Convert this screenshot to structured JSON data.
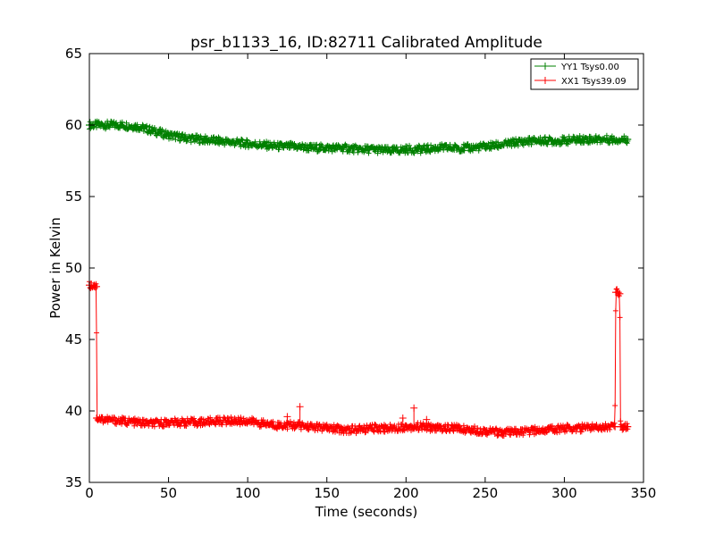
{
  "chart_data": {
    "type": "line",
    "title": "psr_b1133_16, ID:82711 Calibrated Amplitude",
    "xlabel": "Time (seconds)",
    "ylabel": "Power in Kelvin",
    "xlim": [
      0,
      350
    ],
    "ylim": [
      35,
      65
    ],
    "xticks": [
      0,
      50,
      100,
      150,
      200,
      250,
      300,
      350
    ],
    "yticks": [
      35,
      40,
      45,
      50,
      55,
      60,
      65
    ],
    "grid": false,
    "legend_position": "top-right",
    "series": [
      {
        "name": "YY1 Tsys0.00",
        "color": "#008000",
        "marker": "+",
        "points": [
          [
            0,
            60.0
          ],
          [
            10,
            60.0
          ],
          [
            20,
            60.0
          ],
          [
            30,
            59.9
          ],
          [
            40,
            59.6
          ],
          [
            50,
            59.3
          ],
          [
            60,
            59.1
          ],
          [
            70,
            59.0
          ],
          [
            80,
            58.9
          ],
          [
            90,
            58.8
          ],
          [
            100,
            58.7
          ],
          [
            110,
            58.6
          ],
          [
            120,
            58.5
          ],
          [
            130,
            58.5
          ],
          [
            140,
            58.4
          ],
          [
            150,
            58.4
          ],
          [
            160,
            58.4
          ],
          [
            170,
            58.3
          ],
          [
            180,
            58.3
          ],
          [
            190,
            58.2
          ],
          [
            200,
            58.3
          ],
          [
            210,
            58.3
          ],
          [
            220,
            58.4
          ],
          [
            230,
            58.4
          ],
          [
            240,
            58.4
          ],
          [
            250,
            58.5
          ],
          [
            260,
            58.6
          ],
          [
            270,
            58.8
          ],
          [
            280,
            58.9
          ],
          [
            290,
            58.9
          ],
          [
            300,
            58.9
          ],
          [
            310,
            59.0
          ],
          [
            320,
            59.0
          ],
          [
            330,
            59.0
          ],
          [
            340,
            59.0
          ]
        ]
      },
      {
        "name": "XX1 Tsys39.09",
        "color": "#ff0000",
        "marker": "+",
        "points": [
          [
            0,
            48.8
          ],
          [
            3,
            48.8
          ],
          [
            4.5,
            48.7
          ],
          [
            4.6,
            39.5
          ],
          [
            10,
            39.4
          ],
          [
            20,
            39.3
          ],
          [
            30,
            39.2
          ],
          [
            40,
            39.1
          ],
          [
            50,
            39.2
          ],
          [
            60,
            39.2
          ],
          [
            70,
            39.2
          ],
          [
            80,
            39.3
          ],
          [
            90,
            39.3
          ],
          [
            100,
            39.3
          ],
          [
            110,
            39.1
          ],
          [
            120,
            39.0
          ],
          [
            130,
            39.0
          ],
          [
            140,
            38.9
          ],
          [
            150,
            38.8
          ],
          [
            160,
            38.7
          ],
          [
            170,
            38.7
          ],
          [
            180,
            38.8
          ],
          [
            190,
            38.8
          ],
          [
            200,
            38.9
          ],
          [
            210,
            38.9
          ],
          [
            220,
            38.8
          ],
          [
            230,
            38.8
          ],
          [
            240,
            38.7
          ],
          [
            250,
            38.6
          ],
          [
            260,
            38.5
          ],
          [
            270,
            38.5
          ],
          [
            280,
            38.6
          ],
          [
            290,
            38.7
          ],
          [
            300,
            38.8
          ],
          [
            310,
            38.8
          ],
          [
            320,
            38.9
          ],
          [
            332,
            38.9
          ],
          [
            332.5,
            48.3
          ],
          [
            334,
            48.3
          ],
          [
            335,
            48.2
          ],
          [
            335.5,
            38.9
          ],
          [
            340,
            38.9
          ]
        ],
        "outliers": [
          [
            125,
            39.6
          ],
          [
            133,
            40.3
          ],
          [
            198,
            39.5
          ],
          [
            205,
            40.2
          ],
          [
            213,
            39.4
          ]
        ]
      }
    ]
  }
}
